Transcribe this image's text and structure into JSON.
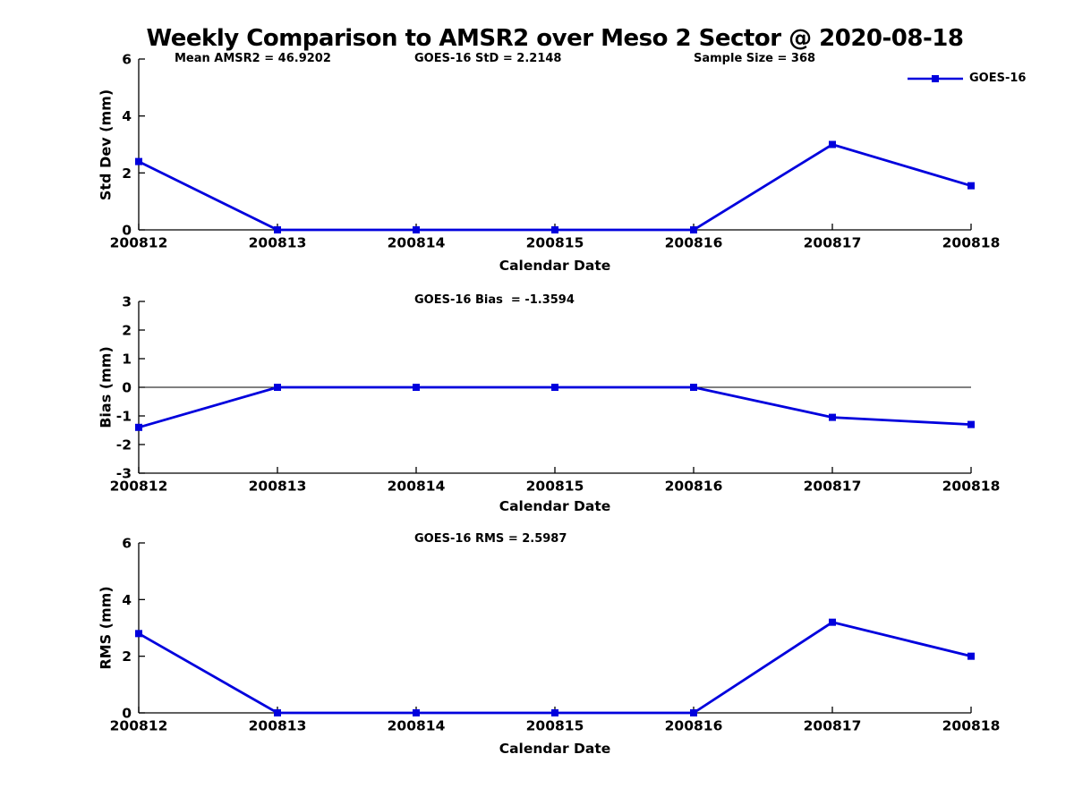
{
  "title": "Weekly Comparison to AMSR2 over Meso 2 Sector @ 2020-08-18",
  "legend": {
    "label": "GOES-16",
    "position": "top-right",
    "marker": "filled-square"
  },
  "colors": {
    "series": "#0000DD",
    "axis": "#000000",
    "text": "#000000",
    "background": "#FFFFFF"
  },
  "chart_data": [
    {
      "name": "std-dev",
      "type": "line",
      "annotations": [
        "Mean AMSR2 = 46.9202",
        "GOES-16 StD = 2.2148",
        "Sample Size = 368"
      ],
      "x": [
        "200812",
        "200813",
        "200814",
        "200815",
        "200816",
        "200817",
        "200818"
      ],
      "series": [
        {
          "name": "GOES-16",
          "values": [
            2.4,
            0,
            0,
            0,
            0,
            3.0,
            1.55
          ]
        }
      ],
      "xlabel": "Calendar Date",
      "ylabel": "Std Dev (mm)",
      "ylim": [
        0,
        6
      ],
      "yticks": [
        0,
        2,
        4,
        6
      ],
      "grid": false,
      "zero_line": false,
      "legend_entries": [
        "GOES-16"
      ]
    },
    {
      "name": "bias",
      "type": "line",
      "annotations": [
        "GOES-16 Bias  = -1.3594"
      ],
      "x": [
        "200812",
        "200813",
        "200814",
        "200815",
        "200816",
        "200817",
        "200818"
      ],
      "series": [
        {
          "name": "GOES-16",
          "values": [
            -1.4,
            0,
            0,
            0,
            0,
            -1.05,
            -1.3
          ]
        }
      ],
      "xlabel": "Calendar Date",
      "ylabel": "Bias (mm)",
      "ylim": [
        -3,
        3
      ],
      "yticks": [
        3,
        2,
        1,
        0,
        -1,
        -2,
        -3
      ],
      "grid": false,
      "zero_line": true,
      "legend_entries": [
        "GOES-16"
      ]
    },
    {
      "name": "rms",
      "type": "line",
      "annotations": [
        "GOES-16 RMS = 2.5987"
      ],
      "x": [
        "200812",
        "200813",
        "200814",
        "200815",
        "200816",
        "200817",
        "200818"
      ],
      "series": [
        {
          "name": "GOES-16",
          "values": [
            2.8,
            0,
            0,
            0,
            0,
            3.2,
            2.0
          ]
        }
      ],
      "xlabel": "Calendar Date",
      "ylabel": "RMS (mm)",
      "ylim": [
        0,
        6
      ],
      "yticks": [
        0,
        2,
        4,
        6
      ],
      "grid": false,
      "zero_line": false,
      "legend_entries": [
        "GOES-16"
      ]
    }
  ]
}
